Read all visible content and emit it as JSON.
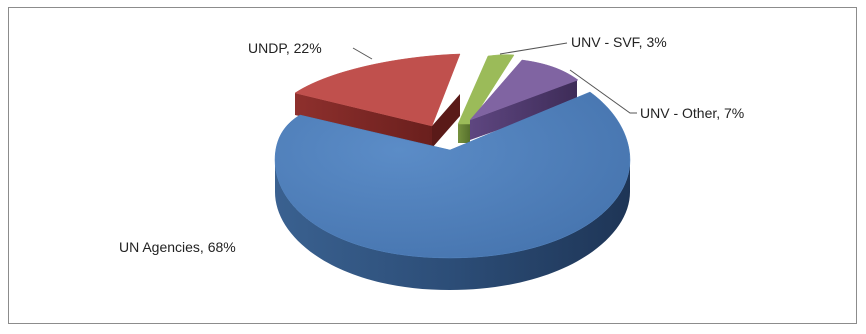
{
  "chart_data": {
    "type": "pie",
    "style": "3d-exploded",
    "title": "",
    "legend": "none",
    "series": [
      {
        "label": "UN Agencies",
        "value": 68,
        "color": "#4f81bd",
        "display": "UN Agencies, 68%"
      },
      {
        "label": "UNDP",
        "value": 22,
        "color": "#c0504d",
        "display": "UNDP, 22%"
      },
      {
        "label": "UNV - SVF",
        "value": 3,
        "color": "#9bbb59",
        "display": "UNV - SVF, 3%"
      },
      {
        "label": "UNV - Other",
        "value": 7,
        "color": "#8064a2",
        "display": "UNV - Other, 7%"
      }
    ]
  }
}
